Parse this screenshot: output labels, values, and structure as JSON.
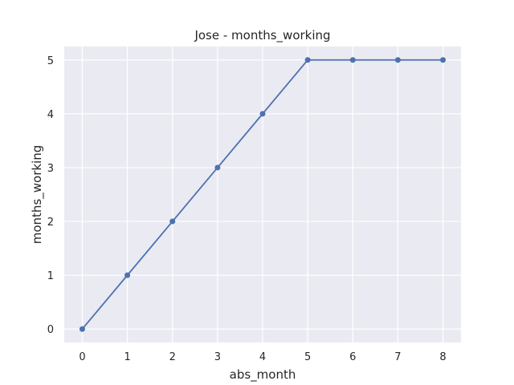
{
  "chart_data": {
    "type": "line",
    "title": "Jose - months_working",
    "xlabel": "abs_month",
    "ylabel": "months_working",
    "x": [
      0,
      1,
      2,
      3,
      4,
      5,
      6,
      7,
      8
    ],
    "series": [
      {
        "values": [
          0,
          1,
          2,
          3,
          4,
          5,
          5,
          5,
          5
        ],
        "color": "#4c72b0"
      }
    ],
    "xticks": [
      0,
      1,
      2,
      3,
      4,
      5,
      6,
      7,
      8
    ],
    "yticks": [
      0,
      1,
      2,
      3,
      4,
      5
    ],
    "xlim": [
      -0.4,
      8.4
    ],
    "ylim": [
      -0.25,
      5.25
    ],
    "grid": true,
    "legend": "none",
    "colors": {
      "background": "#eaeaf2",
      "grid": "#ffffff",
      "text": "#262626",
      "line": "#4c72b0"
    }
  }
}
